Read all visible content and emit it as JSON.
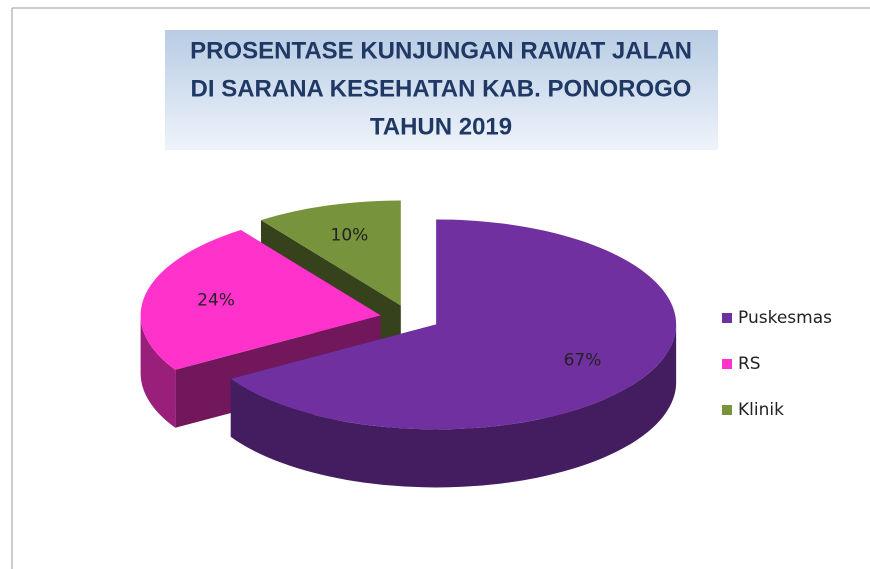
{
  "chart_data": {
    "type": "pie",
    "title": [
      "PROSENTASE KUNJUNGAN RAWAT JALAN",
      "DI SARANA KESEHATAN KAB. PONOROGO",
      "TAHUN 2019"
    ],
    "categories": [
      "Puskesmas",
      "RS",
      "Klinik"
    ],
    "values": [
      67,
      24,
      10
    ],
    "value_labels": [
      "67%",
      "24%",
      "10%"
    ],
    "colors": [
      "#7030a0",
      "#ff33cc",
      "#77933c"
    ],
    "legend": "right"
  }
}
